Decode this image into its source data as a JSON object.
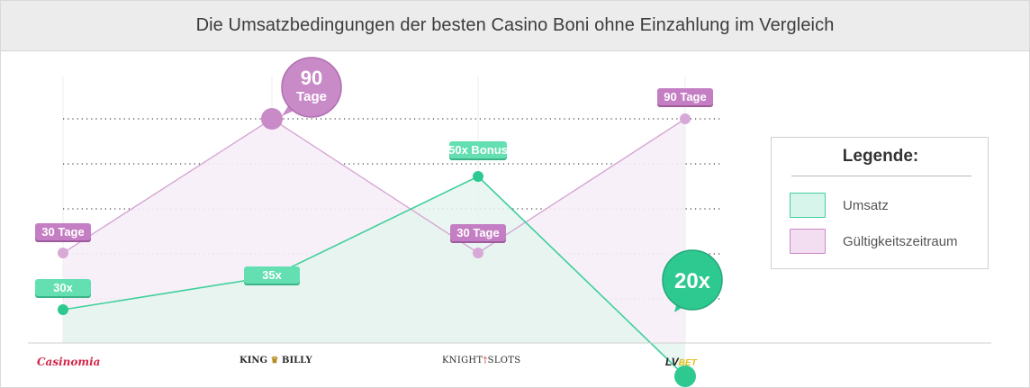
{
  "title": "Die Umsatzbedingungen der besten Casino Boni ohne Einzahlung im Vergleich",
  "chart_data": {
    "type": "area",
    "categories": [
      "Casinomia",
      "King Billy",
      "Knight Slots",
      "LV BET"
    ],
    "series": [
      {
        "name": "Umsatz",
        "color": "#3fcf9c",
        "values": [
          30,
          35,
          50,
          20
        ],
        "labels": [
          "30x",
          "35x",
          "50x Bonus",
          "20x"
        ]
      },
      {
        "name": "Gültigkeitszeitraum",
        "color": "#c98ac8",
        "values": [
          30,
          90,
          30,
          90
        ],
        "labels": [
          "30 Tage",
          "90 Tage",
          "30 Tage",
          "90 Tage"
        ]
      }
    ],
    "highlights": {
      "gueltigkeit_big": {
        "value": "90",
        "unit": "Tage"
      },
      "umsatz_big": {
        "value": "20x"
      }
    },
    "legend": {
      "title": "Legende:",
      "position": "right",
      "items": [
        {
          "label": "Umsatz",
          "fill": "#d8f5ec",
          "stroke": "#3fcf9c"
        },
        {
          "label": "Gültigkeitszeitraum",
          "fill": "#f3def1",
          "stroke": "#c98ac8"
        }
      ]
    },
    "grid": "dotted-horizontal"
  },
  "logos": [
    {
      "name": "casinomia",
      "text": "Casinomia"
    },
    {
      "name": "king-billy",
      "left": "KING",
      "right": "BILLY",
      "crown": "♛"
    },
    {
      "name": "knight-slots",
      "left": "KNIGHT",
      "right": "SLOTS",
      "sword": "†"
    },
    {
      "name": "lv-bet",
      "left": "LV",
      "right": "BET"
    }
  ]
}
